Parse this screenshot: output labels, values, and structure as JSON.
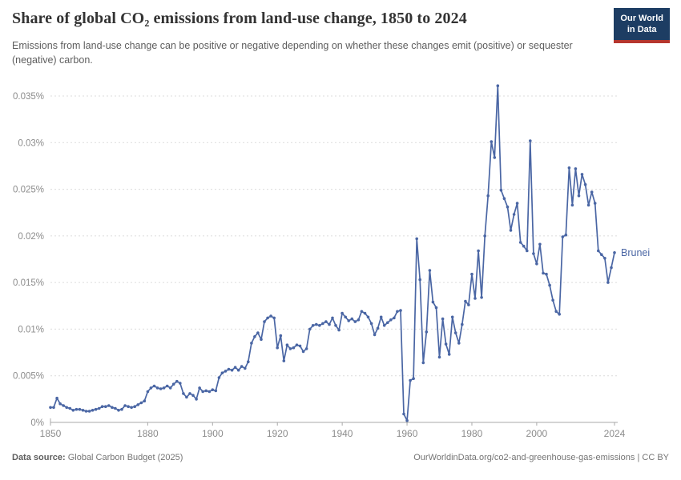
{
  "header": {
    "title": "Share of global CO₂ emissions from land-use change, 1850 to 2024",
    "subtitle": "Emissions from land-use change can be positive or negative depending on whether these changes emit (positive) or sequester (negative) carbon.",
    "logo": {
      "line1": "Our World",
      "line2": "in Data",
      "bg_color": "#1d3d63",
      "accent_color": "#b5362e"
    }
  },
  "footer": {
    "source_label": "Data source:",
    "source_value": "Global Carbon Budget (2025)",
    "right_text": "OurWorldinData.org/co2-and-greenhouse-gas-emissions | CC BY"
  },
  "chart_data": {
    "type": "line",
    "title": "Share of global CO₂ emissions from land-use change, 1850 to 2024",
    "xlabel": "",
    "ylabel": "",
    "x_start": 1850,
    "x_end": 2024,
    "x_step": 1,
    "ylim": [
      0,
      0.035
    ],
    "grid": "horizontal-dashed",
    "legend_position": "end-of-line-label",
    "axis_color": "#a9a9a9",
    "grid_color": "#dcdcdc",
    "tick_label_color": "#8c8c8c",
    "y_ticks": [
      {
        "value": 0,
        "label": "0%"
      },
      {
        "value": 0.005,
        "label": "0.005%"
      },
      {
        "value": 0.01,
        "label": "0.01%"
      },
      {
        "value": 0.015,
        "label": "0.015%"
      },
      {
        "value": 0.02,
        "label": "0.02%"
      },
      {
        "value": 0.025,
        "label": "0.025%"
      },
      {
        "value": 0.03,
        "label": "0.03%"
      },
      {
        "value": 0.035,
        "label": "0.035%"
      }
    ],
    "x_ticks": [
      {
        "value": 1850,
        "label": "1850"
      },
      {
        "value": 1880,
        "label": "1880"
      },
      {
        "value": 1900,
        "label": "1900"
      },
      {
        "value": 1920,
        "label": "1920"
      },
      {
        "value": 1940,
        "label": "1940"
      },
      {
        "value": 1960,
        "label": "1960"
      },
      {
        "value": 1980,
        "label": "1980"
      },
      {
        "value": 2000,
        "label": "2000"
      },
      {
        "value": 2024,
        "label": "2024"
      }
    ],
    "series": [
      {
        "name": "Brunei",
        "color": "#4a66a4",
        "unit": "%",
        "values": [
          0.0016,
          0.0016,
          0.0026,
          0.002,
          0.0018,
          0.0016,
          0.0015,
          0.0013,
          0.0014,
          0.0014,
          0.0013,
          0.0012,
          0.0012,
          0.0013,
          0.0014,
          0.0015,
          0.0017,
          0.0017,
          0.0018,
          0.0016,
          0.0015,
          0.0013,
          0.0014,
          0.0018,
          0.0017,
          0.0016,
          0.0017,
          0.0019,
          0.0021,
          0.0023,
          0.0033,
          0.0037,
          0.0039,
          0.0037,
          0.0036,
          0.0037,
          0.0039,
          0.0037,
          0.0041,
          0.0044,
          0.0042,
          0.0031,
          0.0027,
          0.0031,
          0.0029,
          0.0025,
          0.0037,
          0.0033,
          0.0034,
          0.0033,
          0.0035,
          0.0034,
          0.0048,
          0.0053,
          0.0055,
          0.0057,
          0.0056,
          0.0059,
          0.0056,
          0.006,
          0.0058,
          0.0065,
          0.0085,
          0.0092,
          0.0096,
          0.0089,
          0.0108,
          0.0112,
          0.0114,
          0.0112,
          0.008,
          0.0093,
          0.0066,
          0.0083,
          0.0079,
          0.008,
          0.0083,
          0.0082,
          0.0076,
          0.0079,
          0.01,
          0.0104,
          0.0105,
          0.0104,
          0.0106,
          0.0108,
          0.0105,
          0.0112,
          0.0104,
          0.0099,
          0.0117,
          0.0113,
          0.0109,
          0.0111,
          0.0108,
          0.011,
          0.0119,
          0.0117,
          0.0113,
          0.0106,
          0.0094,
          0.0101,
          0.0113,
          0.0104,
          0.0107,
          0.011,
          0.0112,
          0.0119,
          0.012,
          0.0009,
          0.0002,
          0.0045,
          0.0047,
          0.0197,
          0.0153,
          0.0064,
          0.0097,
          0.0163,
          0.0129,
          0.0123,
          0.007,
          0.0111,
          0.0084,
          0.0073,
          0.0113,
          0.0096,
          0.0085,
          0.0105,
          0.013,
          0.0126,
          0.0159,
          0.0133,
          0.0184,
          0.0134,
          0.02,
          0.0243,
          0.0301,
          0.0284,
          0.0361,
          0.0249,
          0.024,
          0.0231,
          0.0206,
          0.0223,
          0.0235,
          0.0193,
          0.0189,
          0.0184,
          0.0302,
          0.0181,
          0.017,
          0.0191,
          0.016,
          0.0159,
          0.0147,
          0.0131,
          0.0119,
          0.0116,
          0.0199,
          0.0201,
          0.0273,
          0.0233,
          0.0272,
          0.0243,
          0.0266,
          0.0255,
          0.0233,
          0.0247,
          0.0235,
          0.0184,
          0.018,
          0.0176,
          0.015,
          0.0166,
          0.0182
        ]
      }
    ]
  }
}
